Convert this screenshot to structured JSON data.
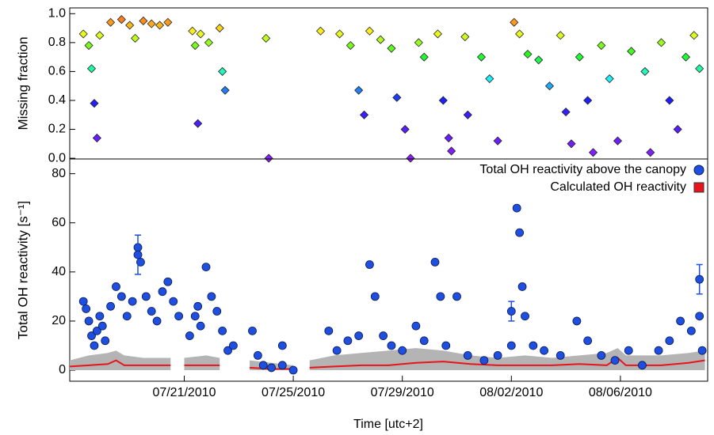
{
  "chart_data": [
    {
      "type": "scatter",
      "ylabel": "Missing fraction",
      "colormap": "rainbow",
      "marker": "diamond",
      "xlim": [
        16.8,
        40.2
      ],
      "ylim": [
        -0.005,
        1.04
      ],
      "yticks": [
        {
          "value": 0,
          "label": "0.0"
        },
        0.2,
        0.4,
        0.6,
        0.8,
        {
          "value": 1,
          "label": "1.0"
        }
      ],
      "x": [
        17.3,
        17.5,
        17.6,
        17.7,
        17.8,
        17.9,
        18.3,
        18.7,
        19.0,
        19.2,
        19.5,
        19.8,
        20.1,
        20.4,
        21.3,
        21.4,
        21.5,
        21.6,
        21.9,
        22.3,
        22.4,
        22.5,
        24.0,
        24.1,
        26.0,
        26.7,
        27.1,
        27.4,
        27.6,
        27.8,
        28.2,
        28.6,
        28.8,
        29.1,
        29.3,
        29.6,
        29.8,
        30.3,
        30.5,
        30.7,
        30.8,
        31.3,
        31.4,
        31.9,
        32.2,
        32.5,
        33.1,
        33.3,
        33.6,
        34.0,
        34.4,
        34.8,
        35.0,
        35.2,
        35.5,
        35.8,
        36.0,
        36.3,
        36.6,
        36.9,
        37.4,
        37.9,
        38.1,
        38.5,
        38.8,
        39.1,
        39.4,
        39.7,
        39.9
      ],
      "values": [
        0.86,
        0.78,
        0.62,
        0.38,
        0.14,
        0.85,
        0.94,
        0.96,
        0.92,
        0.83,
        0.95,
        0.93,
        0.92,
        0.94,
        0.88,
        0.78,
        0.24,
        0.86,
        0.8,
        0.9,
        0.6,
        0.47,
        0.83,
        0.0,
        0.88,
        0.86,
        0.78,
        0.47,
        0.3,
        0.88,
        0.82,
        0.76,
        0.42,
        0.2,
        0.0,
        0.8,
        0.7,
        0.86,
        0.4,
        0.14,
        0.05,
        0.84,
        0.3,
        0.7,
        0.55,
        0.12,
        0.94,
        0.86,
        0.72,
        0.68,
        0.5,
        0.85,
        0.32,
        0.1,
        0.7,
        0.4,
        0.04,
        0.78,
        0.55,
        0.12,
        0.74,
        0.6,
        0.04,
        0.8,
        0.4,
        0.2,
        0.7,
        0.85,
        0.62
      ]
    },
    {
      "type": "scatter",
      "ylabel": "Total OH reactivity [s⁻¹]",
      "xlabel": "Time [utc+2]",
      "xlim": [
        16.8,
        40.2
      ],
      "ylim": [
        -4.5,
        86
      ],
      "xticks": [
        {
          "value": 21,
          "label": "07/21/2010"
        },
        {
          "value": 25,
          "label": "07/25/2010"
        },
        {
          "value": 29,
          "label": "07/29/2010"
        },
        {
          "value": 33,
          "label": "08/02/2010"
        },
        {
          "value": 37,
          "label": "08/06/2010"
        }
      ],
      "yticks": [
        0,
        20,
        40,
        60,
        80
      ],
      "series": [
        {
          "name": "Total OH reactivity above the canopy",
          "color": "#1f4fe0",
          "marker": "circle",
          "x": [
            17.3,
            17.4,
            17.5,
            17.6,
            17.7,
            17.8,
            17.9,
            18.0,
            18.1,
            18.3,
            18.5,
            18.7,
            18.9,
            19.1,
            19.3,
            19.4,
            19.6,
            19.8,
            20.0,
            20.2,
            20.4,
            20.6,
            20.8,
            21.2,
            21.4,
            21.5,
            21.6,
            21.8,
            22.0,
            22.2,
            22.4,
            22.6,
            22.8,
            23.5,
            23.7,
            23.9,
            24.2,
            24.6,
            25.0,
            26.3,
            26.6,
            27.0,
            27.4,
            27.8,
            28.0,
            28.3,
            28.6,
            29.0,
            29.5,
            29.8,
            30.2,
            30.4,
            30.6,
            31.0,
            31.4,
            32.0,
            32.5,
            33.0,
            33.2,
            33.3,
            33.4,
            33.5,
            33.8,
            34.2,
            34.8,
            35.4,
            35.8,
            36.3,
            36.8,
            37.3,
            37.8,
            38.4,
            38.8,
            39.2,
            39.6,
            39.9,
            40.0
          ],
          "values": [
            28,
            25,
            20,
            14,
            10,
            16,
            22,
            18,
            12,
            26,
            34,
            30,
            22,
            28,
            50,
            44,
            30,
            24,
            20,
            32,
            36,
            28,
            22,
            14,
            22,
            26,
            18,
            42,
            30,
            24,
            16,
            8,
            10,
            16,
            6,
            2,
            1,
            2,
            0,
            16,
            8,
            12,
            14,
            43,
            30,
            14,
            10,
            8,
            18,
            12,
            44,
            30,
            10,
            30,
            6,
            4,
            6,
            10,
            66,
            56,
            34,
            22,
            10,
            8,
            6,
            20,
            12,
            6,
            4,
            8,
            2,
            8,
            12,
            20,
            16,
            22,
            8
          ]
        },
        {
          "name": "Calculated OH reactivity",
          "color": "#e8141c",
          "marker": "line",
          "x": [
            16.8,
            17.5,
            18.2,
            18.5,
            18.8,
            19.5,
            20.5,
            20.7,
            21.0,
            21.8,
            22.3,
            22.4,
            23.4,
            24.2,
            25.0,
            25.2,
            25.6,
            26.5,
            27.5,
            28.5,
            29.5,
            30.5,
            31.5,
            32.5,
            33.5,
            34.5,
            35.5,
            36.5,
            36.9,
            37.2,
            38.5,
            39.5,
            40.1
          ],
          "values": [
            1.5,
            2,
            2.5,
            4,
            2,
            2,
            2,
            null,
            2,
            2,
            2,
            null,
            1,
            0.5,
            0.5,
            null,
            1,
            1.5,
            2,
            2,
            3,
            3.5,
            2.5,
            2,
            2,
            2,
            2.5,
            2,
            5,
            2,
            2,
            3,
            4
          ],
          "band_upper": [
            4,
            6,
            7,
            8,
            6,
            5,
            5,
            null,
            5,
            6,
            5,
            null,
            4,
            3,
            2,
            null,
            4,
            6,
            7,
            8,
            9,
            8,
            6,
            5,
            6,
            5,
            6,
            7,
            9,
            6,
            6,
            7,
            8
          ]
        }
      ],
      "error_bars": {
        "x": [
          19.3,
          24.6,
          33.0,
          39.9
        ],
        "values": [
          47,
          10,
          24,
          37
        ],
        "errors": [
          8,
          1,
          4,
          6
        ]
      }
    }
  ]
}
